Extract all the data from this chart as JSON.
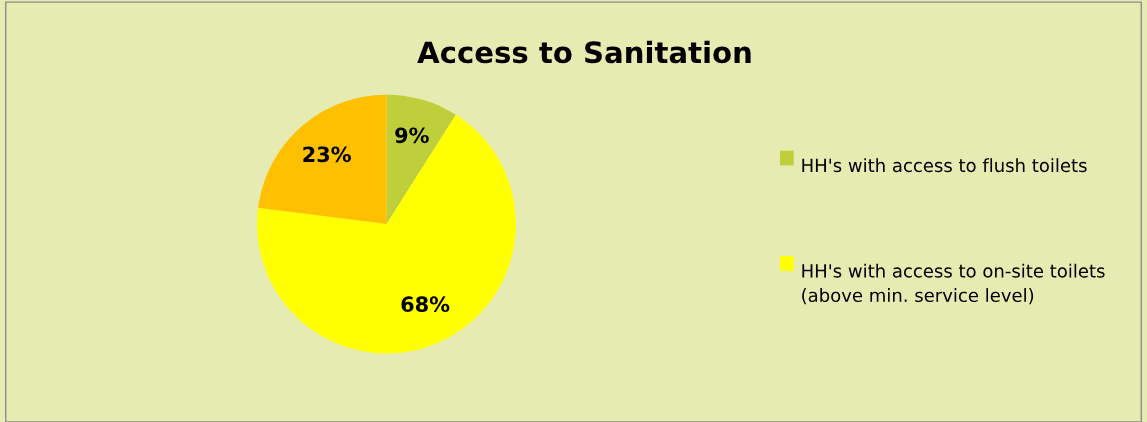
{
  "chart_data": {
    "type": "pie",
    "title": "Access to Sanitation",
    "categories": [
      "HH's with access to flush toilets",
      "HH's with access to on-site toilets (above min. service level)",
      null
    ],
    "values": [
      9,
      68,
      23
    ],
    "colors": [
      "#bfcf3c",
      "#ffff00",
      "#ffc000"
    ],
    "value_labels": [
      "9%",
      "68%",
      "23%"
    ],
    "legend": "right"
  }
}
